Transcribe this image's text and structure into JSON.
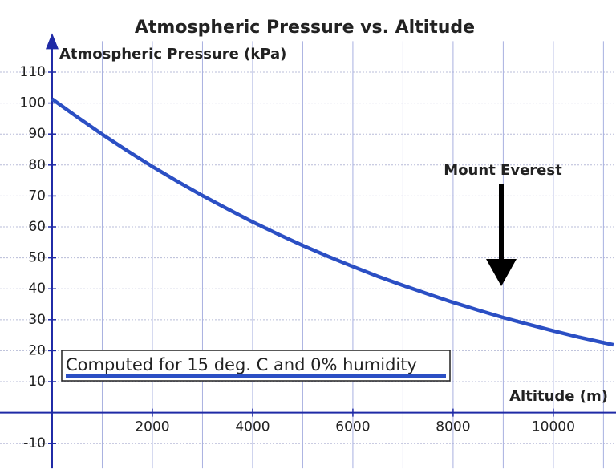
{
  "chart_data": {
    "type": "line",
    "title": "Atmospheric Pressure vs. Altitude",
    "y_label": "Atmospheric Pressure (kPa)",
    "x_label": "Altitude (m)",
    "annotation": "Mount Everest",
    "x": [
      0,
      500,
      1000,
      1500,
      2000,
      2500,
      3000,
      3500,
      4000,
      4500,
      5000,
      5500,
      6000,
      6500,
      7000,
      7500,
      8000,
      8500,
      9000,
      9500,
      10000,
      10500,
      11000,
      11200
    ],
    "series": [
      {
        "name": "Computed for 15 deg. C and 0% humidity",
        "color": "#2b4fc4",
        "values": [
          101.3,
          95.5,
          89.9,
          84.6,
          79.5,
          74.7,
          70.1,
          65.8,
          61.6,
          57.7,
          54.0,
          50.5,
          47.2,
          44.0,
          41.1,
          38.3,
          35.6,
          33.1,
          30.7,
          28.5,
          26.4,
          24.4,
          22.6,
          21.9
        ]
      }
    ],
    "xlim": [
      -1040,
      11250
    ],
    "ylim": [
      -18,
      120
    ],
    "xticks": [
      2000,
      4000,
      6000,
      8000,
      10000
    ],
    "x_minor_grid": [
      1000,
      3000,
      5000,
      7000,
      9000,
      11000
    ],
    "yticks": [
      -10,
      10,
      20,
      30,
      40,
      50,
      60,
      70,
      80,
      90,
      100,
      110
    ],
    "grid": true,
    "axis_color": "#1f2aa6"
  }
}
